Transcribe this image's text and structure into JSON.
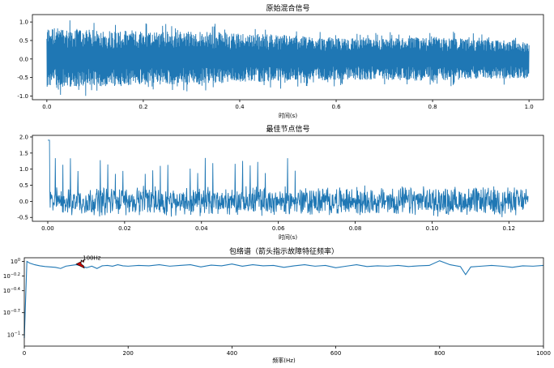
{
  "colors": {
    "series": "#1f77b4",
    "arrow_fill": "#cc0000",
    "arrow_edge": "#000000"
  },
  "chart_data": [
    {
      "type": "line",
      "title": "原始混合信号",
      "xlabel": "时间(s)",
      "ylabel": "",
      "xlim": [
        -0.03,
        1.03
      ],
      "ylim": [
        -1.1,
        1.2
      ],
      "xticks": [
        0.0,
        0.2,
        0.4,
        0.6,
        0.8,
        1.0
      ],
      "xtick_labels": [
        "0.0",
        "0.2",
        "0.4",
        "0.6",
        "0.8",
        "1.0"
      ],
      "yticks": [
        -1.0,
        -0.5,
        0.0,
        0.5,
        1.0
      ],
      "ytick_labels": [
        "-1.0",
        "-0.5",
        "0.0",
        "0.5",
        "1.0"
      ],
      "series": [
        {
          "x_range": [
            0.0,
            1.0
          ],
          "envelope": {
            "x": [
              0.0,
              0.1,
              0.2,
              0.3,
              0.4,
              0.5,
              0.6,
              0.7,
              0.8,
              0.9,
              1.0
            ],
            "upper": [
              1.15,
              1.05,
              1.0,
              1.0,
              0.95,
              0.85,
              0.75,
              0.75,
              0.8,
              0.7,
              0.65
            ],
            "lower": [
              -1.0,
              -1.0,
              -0.95,
              -0.9,
              -0.85,
              -0.8,
              -0.75,
              -0.75,
              -0.8,
              -0.7,
              -0.7
            ]
          }
        }
      ],
      "grid": false
    },
    {
      "type": "line",
      "title": "最佳节点信号",
      "xlabel": "时间(s)",
      "ylabel": "",
      "xlim": [
        -0.004,
        0.129
      ],
      "ylim": [
        -0.62,
        2.05
      ],
      "xticks": [
        0.0,
        0.02,
        0.04,
        0.06,
        0.08,
        0.1,
        0.12
      ],
      "xtick_labels": [
        "0.00",
        "0.02",
        "0.04",
        "0.06",
        "0.08",
        "0.10",
        "0.12"
      ],
      "yticks": [
        -0.5,
        0.0,
        0.5,
        1.0,
        1.5,
        2.0
      ],
      "ytick_labels": [
        "-0.5",
        "0.0",
        "0.5",
        "1.0",
        "1.5",
        "2.0"
      ],
      "series": [
        {
          "x_range": [
            0.0,
            0.125
          ],
          "impulse_period": 0.00195,
          "impulse_amplitude_until_0.066": 1.05,
          "first_peak": 1.9,
          "noise_band": [
            -0.55,
            0.6
          ]
        }
      ],
      "grid": false
    },
    {
      "type": "line",
      "title": "包络谱（箭头指示故障特征频率）",
      "xlabel": "频率(Hz)",
      "ylabel": "",
      "xscale": "log-y",
      "xlim": [
        0,
        1000
      ],
      "xticks": [
        0,
        200,
        400,
        600,
        800,
        1000
      ],
      "xtick_labels": [
        "0",
        "200",
        "400",
        "600",
        "800",
        "1000"
      ],
      "yticks_labels": [
        {
          "base": "10",
          "exp": "0",
          "value": 1.0
        },
        {
          "base": "10",
          "exp": "−0.2",
          "value": 0.631
        },
        {
          "base": "10",
          "exp": "−0.4",
          "value": 0.398
        },
        {
          "base": "10",
          "exp": "−0.7",
          "value": 0.2
        },
        {
          "base": "10",
          "exp": "−1",
          "value": 0.1
        }
      ],
      "series": [
        {
          "x": [
            0,
            5,
            10,
            20,
            30,
            40,
            50,
            60,
            70,
            80,
            90,
            100,
            110,
            120,
            130,
            140,
            150,
            160,
            170,
            180,
            190,
            200,
            220,
            240,
            260,
            280,
            300,
            320,
            340,
            360,
            380,
            400,
            420,
            440,
            460,
            480,
            500,
            520,
            540,
            560,
            580,
            600,
            620,
            640,
            660,
            680,
            700,
            720,
            740,
            760,
            780,
            800,
            820,
            840,
            850,
            860,
            880,
            900,
            920,
            940,
            960,
            980,
            1000
          ],
          "y": [
            0.09,
            1.0,
            0.95,
            0.9,
            0.87,
            0.85,
            0.84,
            0.83,
            0.8,
            0.86,
            0.88,
            0.9,
            0.87,
            0.82,
            0.86,
            0.8,
            0.87,
            0.88,
            0.86,
            0.9,
            0.87,
            0.86,
            0.88,
            0.87,
            0.9,
            0.86,
            0.88,
            0.9,
            0.84,
            0.89,
            0.87,
            0.92,
            0.86,
            0.9,
            0.87,
            0.88,
            0.83,
            0.87,
            0.9,
            0.86,
            0.88,
            0.82,
            0.86,
            0.9,
            0.85,
            0.87,
            0.86,
            0.88,
            0.85,
            0.87,
            0.88,
            1.02,
            0.9,
            0.85,
            0.66,
            0.84,
            0.86,
            0.88,
            0.86,
            0.83,
            0.87,
            0.86,
            0.88
          ]
        }
      ],
      "annotation": {
        "text": "100Hz",
        "arrow_tip": [
          100,
          0.92
        ],
        "text_pos": [
          150,
          1.05
        ]
      },
      "grid": false
    }
  ]
}
